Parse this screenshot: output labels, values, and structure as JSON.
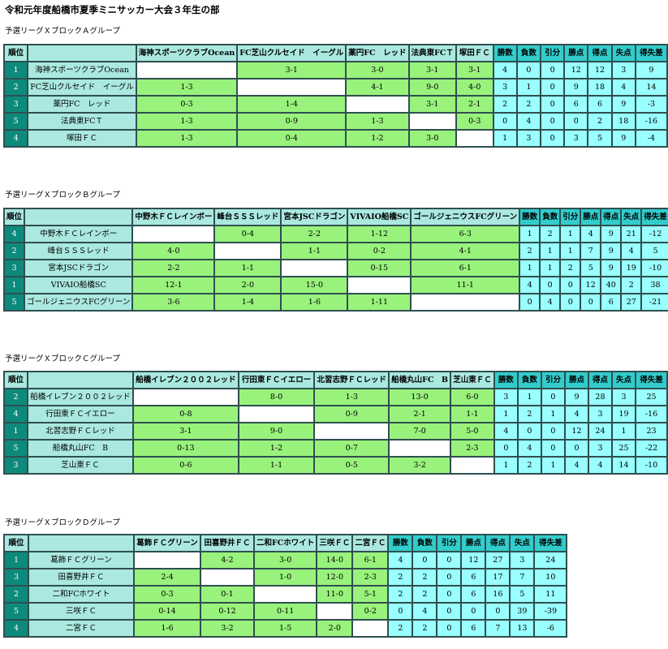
{
  "title": "令和元年度船橋市夏季ミニサッカー大会３年生の部",
  "stat_headers": [
    "勝数",
    "負数",
    "引分",
    "勝点",
    "得点",
    "失点",
    "得失差"
  ],
  "rank_header": "順位",
  "groups": [
    {
      "id": "a",
      "title": "予選リーグＸブロックＡグループ",
      "teams": [
        "海神スポーツクラブOcean",
        "FC芝山クルセイド　イーグル",
        "薬円FC　レッド",
        "法典東FCＴ",
        "塚田ＦＣ"
      ],
      "rows": [
        {
          "rank": "1",
          "team": "海神スポーツクラブOcean",
          "results": [
            "",
            "3-1",
            "3-0",
            "3-1",
            "3-1"
          ],
          "stats": [
            "4",
            "0",
            "0",
            "12",
            "12",
            "3",
            "9"
          ]
        },
        {
          "rank": "2",
          "team": "FC芝山クルセイド　イーグル",
          "results": [
            "1-3",
            "",
            "4-1",
            "9-0",
            "4-0"
          ],
          "stats": [
            "3",
            "1",
            "0",
            "9",
            "18",
            "4",
            "14"
          ]
        },
        {
          "rank": "3",
          "team": "薬円FC　レッド",
          "results": [
            "0-3",
            "1-4",
            "",
            "3-1",
            "2-1"
          ],
          "stats": [
            "2",
            "2",
            "0",
            "6",
            "6",
            "9",
            "-3"
          ]
        },
        {
          "rank": "5",
          "team": "法典東FCＴ",
          "results": [
            "1-3",
            "0-9",
            "1-3",
            "",
            "0-3"
          ],
          "stats": [
            "0",
            "4",
            "0",
            "0",
            "2",
            "18",
            "-16"
          ]
        },
        {
          "rank": "4",
          "team": "塚田ＦＣ",
          "results": [
            "1-3",
            "0-4",
            "1-2",
            "3-0",
            ""
          ],
          "stats": [
            "1",
            "3",
            "0",
            "3",
            "5",
            "9",
            "-4"
          ]
        }
      ]
    },
    {
      "id": "b",
      "title": "予選リーグＸブロックＢグループ",
      "teams": [
        "中野木ＦＣレインボー",
        "峰台ＳＳＳレッド",
        "宮本JSCドラゴン",
        "VIVAIO船橋SC",
        "ゴールジェニウスFCグリーン"
      ],
      "rows": [
        {
          "rank": "4",
          "team": "中野木ＦＣレインボー",
          "results": [
            "",
            "0-4",
            "2-2",
            "1-12",
            "6-3"
          ],
          "stats": [
            "1",
            "2",
            "1",
            "4",
            "9",
            "21",
            "-12"
          ]
        },
        {
          "rank": "2",
          "team": "峰台ＳＳＳレッド",
          "results": [
            "4-0",
            "",
            "1-1",
            "0-2",
            "4-1"
          ],
          "stats": [
            "2",
            "1",
            "1",
            "7",
            "9",
            "4",
            "5"
          ]
        },
        {
          "rank": "3",
          "team": "宮本JSCドラゴン",
          "results": [
            "2-2",
            "1-1",
            "",
            "0-15",
            "6-1"
          ],
          "stats": [
            "1",
            "1",
            "2",
            "5",
            "9",
            "19",
            "-10"
          ]
        },
        {
          "rank": "1",
          "team": "VIVAIO船橋SC",
          "results": [
            "12-1",
            "2-0",
            "15-0",
            "",
            "11-1"
          ],
          "stats": [
            "4",
            "0",
            "0",
            "12",
            "40",
            "2",
            "38"
          ]
        },
        {
          "rank": "5",
          "team": "ゴールジェニウスFCグリーン",
          "results": [
            "3-6",
            "1-4",
            "1-6",
            "1-11",
            ""
          ],
          "stats": [
            "0",
            "4",
            "0",
            "0",
            "6",
            "27",
            "-21"
          ]
        }
      ]
    },
    {
      "id": "c",
      "title": "予選リーグＸブロックＣグループ",
      "teams": [
        "船橋イレブン２００２レッド",
        "行田東ＦＣイエロー",
        "北習志野ＦＣレッド",
        "船橋丸山FC　B",
        "芝山東ＦＣ"
      ],
      "rows": [
        {
          "rank": "2",
          "team": "船橋イレブン２００２レッド",
          "results": [
            "",
            "8-0",
            "1-3",
            "13-0",
            "6-0"
          ],
          "stats": [
            "3",
            "1",
            "0",
            "9",
            "28",
            "3",
            "25"
          ]
        },
        {
          "rank": "4",
          "team": "行田東ＦＣイエロー",
          "results": [
            "0-8",
            "",
            "0-9",
            "2-1",
            "1-1"
          ],
          "stats": [
            "1",
            "2",
            "1",
            "4",
            "3",
            "19",
            "-16"
          ]
        },
        {
          "rank": "1",
          "team": "北習志野ＦＣレッド",
          "results": [
            "3-1",
            "9-0",
            "",
            "7-0",
            "5-0"
          ],
          "stats": [
            "4",
            "0",
            "0",
            "12",
            "24",
            "1",
            "23"
          ]
        },
        {
          "rank": "5",
          "team": "船橋丸山FC　B",
          "results": [
            "0-13",
            "1-2",
            "0-7",
            "",
            "2-3"
          ],
          "stats": [
            "0",
            "4",
            "0",
            "0",
            "3",
            "25",
            "-22"
          ]
        },
        {
          "rank": "3",
          "team": "芝山東ＦＣ",
          "results": [
            "0-6",
            "1-1",
            "0-5",
            "3-2",
            ""
          ],
          "stats": [
            "1",
            "2",
            "1",
            "4",
            "4",
            "14",
            "-10"
          ]
        }
      ]
    },
    {
      "id": "d",
      "title": "予選リーグＸブロックＤグループ",
      "teams": [
        "葛飾ＦＣグリーン",
        "田喜野井ＦＣ",
        "二和FCホワイト",
        "三咲ＦＣ",
        "二宮ＦＣ"
      ],
      "rows": [
        {
          "rank": "1",
          "team": "葛飾ＦＣグリーン",
          "results": [
            "",
            "4-2",
            "3-0",
            "14-0",
            "6-1"
          ],
          "stats": [
            "4",
            "0",
            "0",
            "12",
            "27",
            "3",
            "24"
          ]
        },
        {
          "rank": "3",
          "team": "田喜野井ＦＣ",
          "results": [
            "2-4",
            "",
            "1-0",
            "12-0",
            "2-3"
          ],
          "stats": [
            "2",
            "2",
            "0",
            "6",
            "17",
            "7",
            "10"
          ]
        },
        {
          "rank": "2",
          "team": "二和FCホワイト",
          "results": [
            "0-3",
            "0-1",
            "",
            "11-0",
            "5-1"
          ],
          "stats": [
            "2",
            "2",
            "0",
            "6",
            "16",
            "5",
            "11"
          ]
        },
        {
          "rank": "5",
          "team": "三咲ＦＣ",
          "results": [
            "0-14",
            "0-12",
            "0-11",
            "",
            "0-2"
          ],
          "stats": [
            "0",
            "4",
            "0",
            "0",
            "0",
            "39",
            "-39"
          ]
        },
        {
          "rank": "4",
          "team": "二宮ＦＣ",
          "results": [
            "1-6",
            "3-2",
            "1-5",
            "2-0",
            ""
          ],
          "stats": [
            "2",
            "2",
            "0",
            "6",
            "7",
            "13",
            "-6"
          ]
        }
      ]
    }
  ]
}
